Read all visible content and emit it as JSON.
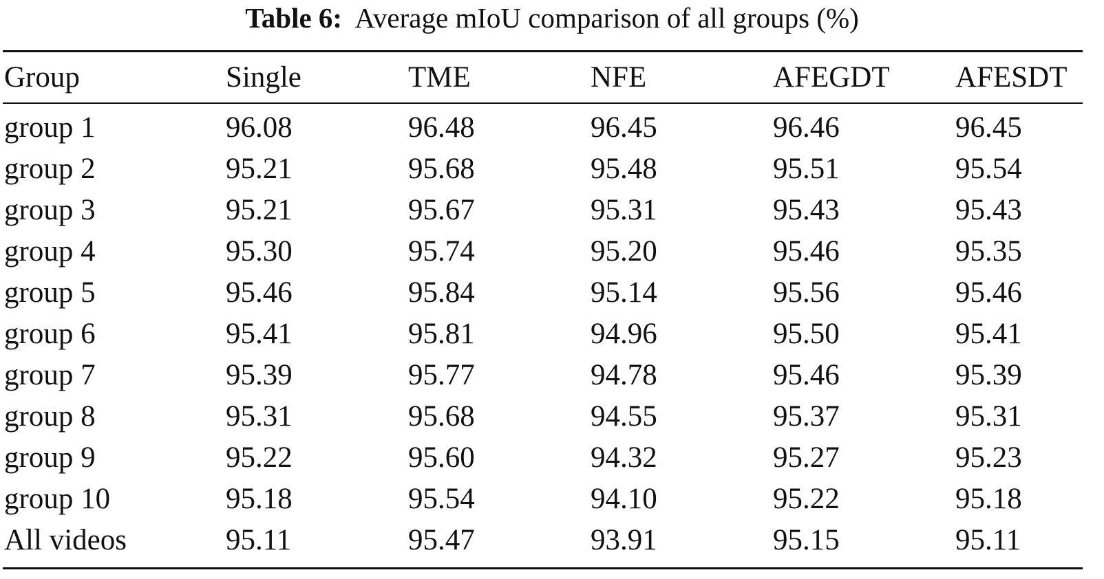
{
  "caption": {
    "label": "Table 6:",
    "text": "Average mIoU comparison of all groups (%)"
  },
  "table": {
    "headers": [
      "Group",
      "Single",
      "TME",
      "NFE",
      "AFEGDT",
      "AFESDT"
    ],
    "rows": [
      [
        "group 1",
        "96.08",
        "96.48",
        "96.45",
        "96.46",
        "96.45"
      ],
      [
        "group 2",
        "95.21",
        "95.68",
        "95.48",
        "95.51",
        "95.54"
      ],
      [
        "group 3",
        "95.21",
        "95.67",
        "95.31",
        "95.43",
        "95.43"
      ],
      [
        "group 4",
        "95.30",
        "95.74",
        "95.20",
        "95.46",
        "95.35"
      ],
      [
        "group 5",
        "95.46",
        "95.84",
        "95.14",
        "95.56",
        "95.46"
      ],
      [
        "group 6",
        "95.41",
        "95.81",
        "94.96",
        "95.50",
        "95.41"
      ],
      [
        "group 7",
        "95.39",
        "95.77",
        "94.78",
        "95.46",
        "95.39"
      ],
      [
        "group 8",
        "95.31",
        "95.68",
        "94.55",
        "95.37",
        "95.31"
      ],
      [
        "group 9",
        "95.22",
        "95.60",
        "94.32",
        "95.27",
        "95.23"
      ],
      [
        "group 10",
        "95.18",
        "95.54",
        "94.10",
        "95.22",
        "95.18"
      ],
      [
        "All videos",
        "95.11",
        "95.47",
        "93.91",
        "95.15",
        "95.11"
      ]
    ]
  }
}
